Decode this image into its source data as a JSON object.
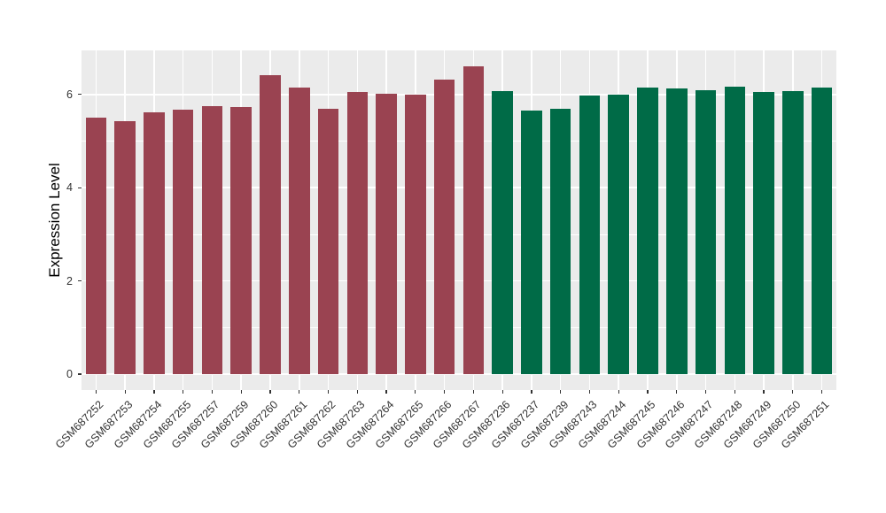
{
  "chart_data": {
    "type": "bar",
    "title": "",
    "ylabel": "Expression Level",
    "xlabel": "",
    "ylim": [
      0,
      6.95
    ],
    "yticks": [
      0,
      2,
      4,
      6
    ],
    "yticks_minor": [
      1,
      3,
      5
    ],
    "grid": "on",
    "legend": "none",
    "panel_bg": "#EBEBEB",
    "grid_color": "#FFFFFF",
    "axis_text_color": "#333333",
    "axis_title_color": "#000000",
    "group_colors": {
      "group1": "#9A4351",
      "group2": "#006B47"
    },
    "bars": [
      {
        "label": "GSM687252",
        "value": 5.5,
        "group": "group1"
      },
      {
        "label": "GSM687253",
        "value": 5.43,
        "group": "group1"
      },
      {
        "label": "GSM687254",
        "value": 5.62,
        "group": "group1"
      },
      {
        "label": "GSM687255",
        "value": 5.68,
        "group": "group1"
      },
      {
        "label": "GSM687257",
        "value": 5.75,
        "group": "group1"
      },
      {
        "label": "GSM687259",
        "value": 5.73,
        "group": "group1"
      },
      {
        "label": "GSM687260",
        "value": 6.41,
        "group": "group1"
      },
      {
        "label": "GSM687261",
        "value": 6.14,
        "group": "group1"
      },
      {
        "label": "GSM687262",
        "value": 5.7,
        "group": "group1"
      },
      {
        "label": "GSM687263",
        "value": 6.06,
        "group": "group1"
      },
      {
        "label": "GSM687264",
        "value": 6.01,
        "group": "group1"
      },
      {
        "label": "GSM687265",
        "value": 5.99,
        "group": "group1"
      },
      {
        "label": "GSM687266",
        "value": 6.32,
        "group": "group1"
      },
      {
        "label": "GSM687267",
        "value": 6.61,
        "group": "group1"
      },
      {
        "label": "GSM687236",
        "value": 6.08,
        "group": "group2"
      },
      {
        "label": "GSM687237",
        "value": 5.65,
        "group": "group2"
      },
      {
        "label": "GSM687239",
        "value": 5.7,
        "group": "group2"
      },
      {
        "label": "GSM687243",
        "value": 5.97,
        "group": "group2"
      },
      {
        "label": "GSM687244",
        "value": 6.0,
        "group": "group2"
      },
      {
        "label": "GSM687245",
        "value": 6.14,
        "group": "group2"
      },
      {
        "label": "GSM687246",
        "value": 6.12,
        "group": "group2"
      },
      {
        "label": "GSM687247",
        "value": 6.1,
        "group": "group2"
      },
      {
        "label": "GSM687248",
        "value": 6.17,
        "group": "group2"
      },
      {
        "label": "GSM687249",
        "value": 6.05,
        "group": "group2"
      },
      {
        "label": "GSM687250",
        "value": 6.08,
        "group": "group2"
      },
      {
        "label": "GSM687251",
        "value": 6.14,
        "group": "group2"
      }
    ]
  }
}
